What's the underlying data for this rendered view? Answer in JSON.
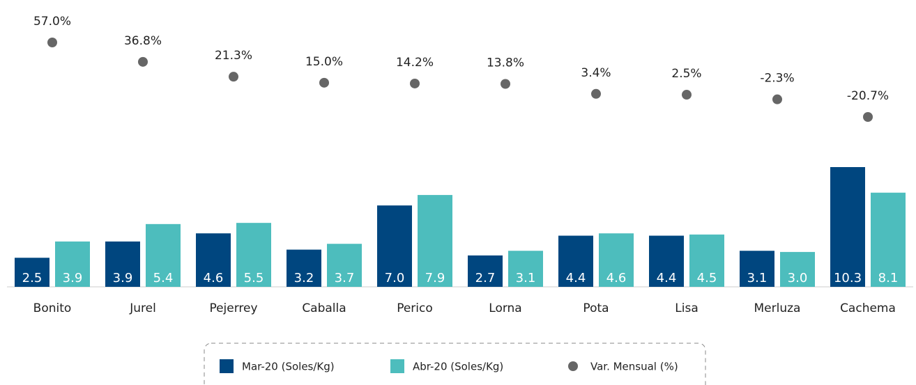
{
  "chart_data": {
    "type": "bar",
    "categories": [
      "Bonito",
      "Jurel",
      "Pejerrey",
      "Caballa",
      "Perico",
      "Lorna",
      "Pota",
      "Lisa",
      "Merluza",
      "Cachema"
    ],
    "series": [
      {
        "name": "Mar-20 (Soles/Kg)",
        "color": "#00467f",
        "values": [
          2.5,
          3.9,
          4.6,
          3.2,
          7.0,
          2.7,
          4.4,
          4.4,
          3.1,
          10.3
        ],
        "value_labels": [
          "2.5",
          "3.9",
          "4.6",
          "3.2",
          "7.0",
          "2.7",
          "4.4",
          "4.4",
          "3.1",
          "10.3"
        ]
      },
      {
        "name": "Abr-20 (Soles/Kg)",
        "color": "#4dbdbd",
        "values": [
          3.9,
          5.4,
          5.5,
          3.7,
          7.9,
          3.1,
          4.6,
          4.5,
          3.0,
          8.1
        ],
        "value_labels": [
          "3.9",
          "5.4",
          "5.5",
          "3.7",
          "7.9",
          "3.1",
          "4.6",
          "4.5",
          "3.0",
          "8.1"
        ]
      },
      {
        "name": "Var. Mensual (%)",
        "color": "#666666",
        "type": "scatter",
        "axis": "y2",
        "values": [
          57.0,
          36.8,
          21.3,
          15.0,
          14.2,
          13.8,
          3.4,
          2.5,
          -2.3,
          -20.7
        ],
        "value_labels": [
          "57.0%",
          "36.8%",
          "21.3%",
          "15.0%",
          "14.2%",
          "13.8%",
          "3.4%",
          "2.5%",
          "-2.3%",
          "-20.7%"
        ]
      }
    ],
    "legend": "bottom"
  }
}
